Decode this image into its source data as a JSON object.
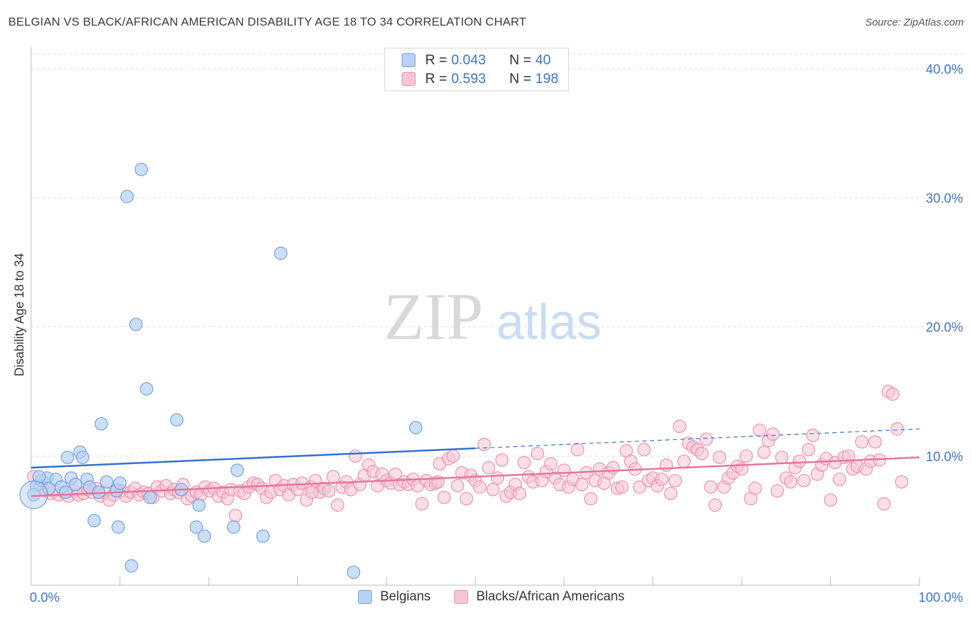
{
  "title": "BELGIAN VS BLACK/AFRICAN AMERICAN DISABILITY AGE 18 TO 34 CORRELATION CHART",
  "source": "Source: ZipAtlas.com",
  "watermark": {
    "zip": "ZIP",
    "atlas": "atlas"
  },
  "legend": {
    "blue": {
      "r_label": "R = ",
      "r_value": "0.043",
      "n_label": "N = ",
      "n_value": "40"
    },
    "pink": {
      "r_label": "R = ",
      "r_value": "0.593",
      "n_label": "N = ",
      "n_value": "198"
    }
  },
  "bottom_legend": {
    "blue": "Belgians",
    "pink": "Blacks/African Americans"
  },
  "colors": {
    "blue_fill": "#b7d2f4",
    "blue_stroke": "#6fa0de",
    "blue_line": "#2f6fd0",
    "pink_fill": "#f8c5d4",
    "pink_stroke": "#ec8fac",
    "pink_line": "#e7739a",
    "axis_label": "#3f74c6"
  },
  "chart_data": {
    "type": "scatter",
    "title": "BELGIAN VS BLACK/AFRICAN AMERICAN DISABILITY AGE 18 TO 34 CORRELATION CHART",
    "xlabel": "",
    "ylabel": "Disability Age 18 to 34",
    "xlim": [
      0,
      100
    ],
    "ylim": [
      0,
      42
    ],
    "x_tick_labels": [
      "0.0%",
      "100.0%"
    ],
    "y_ticks": [
      10,
      20,
      30,
      40
    ],
    "y_tick_labels": [
      "10.0%",
      "20.0%",
      "30.0%",
      "40.0%"
    ],
    "grid": "horizontal dashed",
    "legend_placement": "top-center",
    "series": [
      {
        "name": "Belgians",
        "color": "#6fa0de",
        "trend": {
          "x": [
            0,
            50
          ],
          "y": [
            9.1,
            10.6
          ],
          "dashed_extension": {
            "x": [
              50,
              100
            ],
            "y": [
              10.6,
              12.1
            ]
          }
        },
        "points": [
          [
            0.6,
            7.7
          ],
          [
            1.2,
            8.1
          ],
          [
            1.8,
            8.3
          ],
          [
            2.0,
            7.5
          ],
          [
            2.8,
            8.2
          ],
          [
            3.4,
            7.6
          ],
          [
            3.9,
            7.2
          ],
          [
            4.1,
            9.9
          ],
          [
            4.5,
            8.3
          ],
          [
            5.0,
            7.8
          ],
          [
            5.5,
            10.3
          ],
          [
            5.8,
            9.9
          ],
          [
            6.3,
            8.2
          ],
          [
            6.6,
            7.6
          ],
          [
            7.1,
            5.0
          ],
          [
            7.6,
            7.2
          ],
          [
            7.9,
            12.5
          ],
          [
            8.5,
            8.0
          ],
          [
            9.6,
            7.3
          ],
          [
            9.8,
            4.5
          ],
          [
            10.0,
            7.9
          ],
          [
            10.8,
            30.1
          ],
          [
            11.3,
            1.5
          ],
          [
            11.8,
            20.2
          ],
          [
            12.4,
            32.2
          ],
          [
            13.0,
            15.2
          ],
          [
            13.4,
            6.8
          ],
          [
            16.4,
            12.8
          ],
          [
            16.9,
            7.4
          ],
          [
            18.6,
            4.5
          ],
          [
            18.9,
            6.2
          ],
          [
            19.5,
            3.8
          ],
          [
            22.8,
            4.5
          ],
          [
            23.2,
            8.9
          ],
          [
            26.1,
            3.8
          ],
          [
            28.1,
            25.7
          ],
          [
            36.3,
            1.0
          ],
          [
            43.3,
            12.2
          ],
          [
            0.3,
            7.0
          ],
          [
            0.9,
            8.4
          ]
        ]
      },
      {
        "name": "Blacks/African Americans",
        "color": "#ec8fac",
        "trend": {
          "x": [
            0,
            100
          ],
          "y": [
            6.9,
            9.9
          ]
        },
        "points": [
          [
            0.3,
            8.4
          ],
          [
            1.0,
            7.6
          ],
          [
            1.6,
            7.3
          ],
          [
            2.2,
            7.1
          ],
          [
            2.6,
            7.3
          ],
          [
            3.1,
            7.0
          ],
          [
            3.7,
            7.2
          ],
          [
            4.2,
            6.9
          ],
          [
            4.8,
            7.3
          ],
          [
            5.3,
            7.0
          ],
          [
            5.9,
            7.1
          ],
          [
            6.4,
            7.4
          ],
          [
            6.9,
            7.2
          ],
          [
            7.3,
            7.5
          ],
          [
            7.8,
            6.9
          ],
          [
            8.3,
            7.2
          ],
          [
            8.8,
            6.6
          ],
          [
            9.3,
            7.0
          ],
          [
            9.7,
            7.4
          ],
          [
            10.2,
            7.3
          ],
          [
            10.7,
            6.9
          ],
          [
            11.2,
            7.2
          ],
          [
            11.7,
            7.5
          ],
          [
            12.2,
            7.0
          ],
          [
            12.7,
            7.2
          ],
          [
            13.2,
            7.1
          ],
          [
            13.7,
            6.8
          ],
          [
            14.2,
            7.6
          ],
          [
            14.7,
            7.3
          ],
          [
            15.2,
            7.7
          ],
          [
            15.7,
            7.1
          ],
          [
            16.1,
            7.4
          ],
          [
            16.6,
            7.2
          ],
          [
            17.1,
            7.8
          ],
          [
            17.6,
            6.7
          ],
          [
            18.1,
            6.9
          ],
          [
            18.6,
            7.2
          ],
          [
            19.1,
            7.0
          ],
          [
            19.6,
            7.6
          ],
          [
            20.1,
            7.3
          ],
          [
            20.6,
            7.5
          ],
          [
            21.1,
            6.9
          ],
          [
            21.6,
            7.2
          ],
          [
            22.1,
            6.7
          ],
          [
            22.5,
            7.4
          ],
          [
            23.0,
            5.4
          ],
          [
            23.5,
            7.3
          ],
          [
            24.0,
            7.1
          ],
          [
            24.5,
            7.6
          ],
          [
            25.0,
            7.9
          ],
          [
            25.5,
            7.8
          ],
          [
            26.0,
            7.5
          ],
          [
            26.5,
            6.8
          ],
          [
            27.0,
            7.2
          ],
          [
            27.5,
            8.1
          ],
          [
            28.0,
            7.4
          ],
          [
            28.5,
            7.7
          ],
          [
            29.0,
            7.0
          ],
          [
            29.5,
            7.8
          ],
          [
            30.0,
            7.4
          ],
          [
            30.5,
            7.9
          ],
          [
            31.0,
            6.6
          ],
          [
            31.5,
            7.6
          ],
          [
            32.0,
            8.1
          ],
          [
            32.5,
            7.2
          ],
          [
            33.0,
            7.5
          ],
          [
            33.5,
            7.3
          ],
          [
            34.0,
            8.4
          ],
          [
            34.5,
            6.2
          ],
          [
            35.0,
            7.6
          ],
          [
            35.5,
            8.0
          ],
          [
            36.0,
            7.4
          ],
          [
            36.5,
            10.0
          ],
          [
            37.0,
            7.8
          ],
          [
            37.5,
            8.5
          ],
          [
            38.0,
            9.3
          ],
          [
            38.5,
            8.8
          ],
          [
            39.0,
            7.7
          ],
          [
            39.5,
            8.6
          ],
          [
            40.0,
            8.1
          ],
          [
            40.5,
            7.9
          ],
          [
            41.0,
            8.6
          ],
          [
            41.5,
            7.8
          ],
          [
            42.0,
            8.0
          ],
          [
            42.5,
            7.8
          ],
          [
            43.0,
            8.2
          ],
          [
            43.5,
            7.7
          ],
          [
            44.0,
            6.3
          ],
          [
            44.5,
            8.1
          ],
          [
            45.0,
            7.8
          ],
          [
            45.5,
            7.9
          ],
          [
            46.0,
            9.4
          ],
          [
            46.5,
            6.8
          ],
          [
            47.0,
            9.8
          ],
          [
            47.5,
            10.0
          ],
          [
            48.0,
            7.7
          ],
          [
            48.5,
            8.7
          ],
          [
            49.0,
            6.7
          ],
          [
            49.5,
            8.5
          ],
          [
            50.0,
            8.1
          ],
          [
            50.5,
            7.6
          ],
          [
            51.0,
            10.9
          ],
          [
            51.5,
            9.1
          ],
          [
            52.0,
            7.4
          ],
          [
            52.5,
            8.3
          ],
          [
            53.0,
            9.7
          ],
          [
            53.5,
            6.9
          ],
          [
            54.0,
            7.2
          ],
          [
            54.5,
            7.8
          ],
          [
            55.0,
            7.1
          ],
          [
            55.5,
            9.5
          ],
          [
            56.0,
            8.4
          ],
          [
            56.5,
            8.0
          ],
          [
            57.0,
            10.2
          ],
          [
            57.5,
            8.1
          ],
          [
            58.0,
            8.8
          ],
          [
            58.5,
            9.4
          ],
          [
            59.0,
            8.3
          ],
          [
            59.5,
            7.8
          ],
          [
            60.0,
            8.9
          ],
          [
            60.5,
            7.6
          ],
          [
            61.0,
            8.2
          ],
          [
            61.5,
            10.5
          ],
          [
            62.0,
            7.8
          ],
          [
            62.5,
            8.7
          ],
          [
            63.0,
            6.7
          ],
          [
            63.5,
            8.1
          ],
          [
            64.0,
            9.0
          ],
          [
            64.5,
            7.9
          ],
          [
            65.0,
            8.7
          ],
          [
            65.5,
            9.1
          ],
          [
            66.0,
            7.5
          ],
          [
            66.5,
            7.6
          ],
          [
            67.0,
            10.4
          ],
          [
            67.5,
            9.6
          ],
          [
            68.0,
            9.0
          ],
          [
            68.5,
            7.6
          ],
          [
            69.0,
            10.5
          ],
          [
            69.5,
            8.1
          ],
          [
            70.0,
            8.3
          ],
          [
            70.5,
            7.7
          ],
          [
            71.0,
            8.2
          ],
          [
            71.5,
            9.3
          ],
          [
            72.0,
            7.1
          ],
          [
            72.5,
            8.1
          ],
          [
            73.0,
            12.3
          ],
          [
            73.5,
            9.6
          ],
          [
            74.0,
            11.0
          ],
          [
            74.5,
            10.7
          ],
          [
            75.0,
            10.5
          ],
          [
            75.5,
            10.2
          ],
          [
            76.0,
            11.3
          ],
          [
            76.5,
            7.6
          ],
          [
            77.0,
            6.2
          ],
          [
            77.5,
            9.9
          ],
          [
            78.0,
            7.6
          ],
          [
            78.5,
            8.3
          ],
          [
            79.0,
            8.7
          ],
          [
            79.5,
            9.2
          ],
          [
            80.0,
            9.0
          ],
          [
            80.5,
            10.0
          ],
          [
            81.0,
            6.7
          ],
          [
            81.5,
            7.5
          ],
          [
            82.0,
            12.0
          ],
          [
            82.5,
            10.3
          ],
          [
            83.0,
            11.2
          ],
          [
            83.5,
            11.7
          ],
          [
            84.0,
            7.3
          ],
          [
            84.5,
            9.9
          ],
          [
            85.0,
            8.3
          ],
          [
            85.5,
            8.0
          ],
          [
            86.0,
            9.1
          ],
          [
            86.5,
            9.6
          ],
          [
            87.0,
            8.1
          ],
          [
            87.5,
            10.5
          ],
          [
            88.0,
            11.6
          ],
          [
            88.5,
            8.6
          ],
          [
            89.0,
            9.3
          ],
          [
            89.5,
            9.8
          ],
          [
            90.0,
            6.6
          ],
          [
            90.5,
            9.5
          ],
          [
            91.0,
            8.2
          ],
          [
            91.5,
            9.9
          ],
          [
            92.0,
            10.0
          ],
          [
            92.5,
            9.0
          ],
          [
            93.0,
            9.2
          ],
          [
            93.5,
            11.1
          ],
          [
            94.0,
            9.0
          ],
          [
            94.5,
            9.6
          ],
          [
            95.0,
            11.1
          ],
          [
            95.5,
            9.7
          ],
          [
            96.0,
            6.3
          ],
          [
            96.5,
            15.0
          ],
          [
            97.0,
            14.8
          ],
          [
            97.5,
            12.1
          ],
          [
            98.0,
            8.0
          ],
          [
            31.6,
            7.2
          ],
          [
            45.8,
            8.0
          ]
        ]
      }
    ]
  }
}
